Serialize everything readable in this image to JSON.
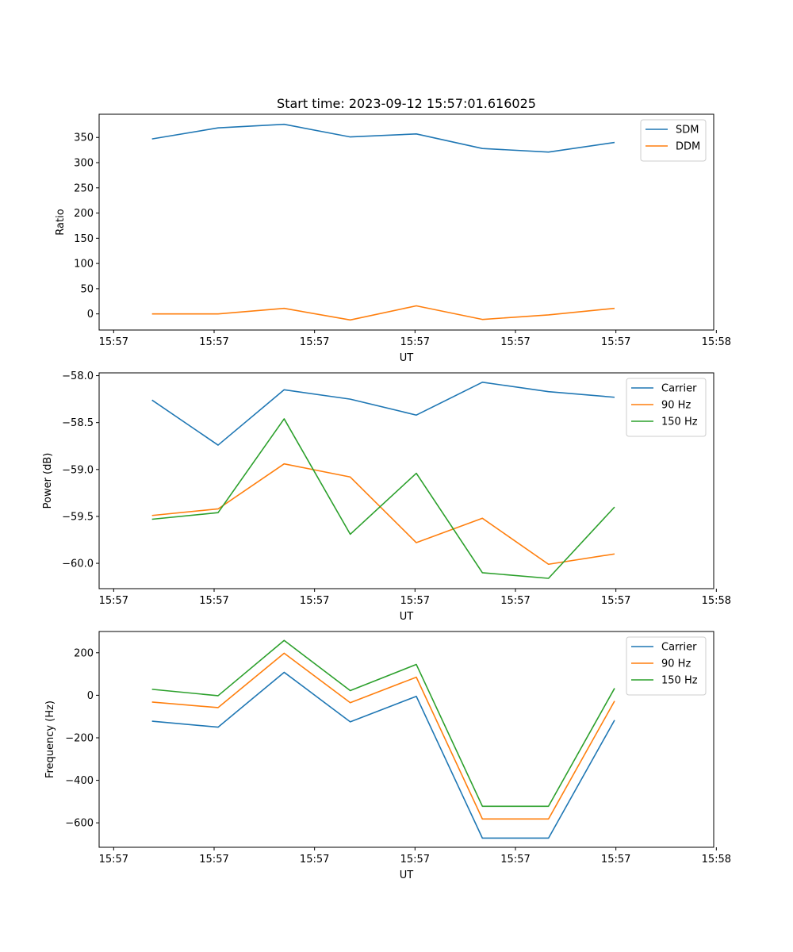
{
  "chart_data": [
    {
      "type": "line",
      "title": "Start time: 2023-09-12 15:57:01.616025",
      "xlabel": "UT",
      "ylabel": "Ratio",
      "x": [
        1,
        2,
        3,
        4,
        5,
        6,
        7,
        8
      ],
      "xlim": [
        0.2,
        9.5
      ],
      "x_ticks": [
        0.42,
        1.94,
        3.46,
        4.98,
        6.5,
        8.02,
        9.54
      ],
      "x_tick_labels": [
        "15:57",
        "15:57",
        "15:57",
        "15:57",
        "15:57",
        "15:57",
        "15:58"
      ],
      "ylim": [
        -32,
        396
      ],
      "y_ticks": [
        0,
        50,
        100,
        150,
        200,
        250,
        300,
        350
      ],
      "y_tick_labels": [
        "0",
        "50",
        "100",
        "150",
        "200",
        "250",
        "300",
        "350"
      ],
      "legend_position": "top-right",
      "series": [
        {
          "name": "SDM",
          "color": "#1f77b4",
          "values": [
            347,
            369,
            376,
            351,
            357,
            328,
            321,
            340
          ]
        },
        {
          "name": "DDM",
          "color": "#ff7f0e",
          "values": [
            0,
            0,
            11,
            -12,
            16,
            -11,
            -2,
            11
          ]
        }
      ]
    },
    {
      "type": "line",
      "title": "",
      "xlabel": "UT",
      "ylabel": "Power (dB)",
      "x": [
        1,
        2,
        3,
        4,
        5,
        6,
        7,
        8
      ],
      "xlim": [
        0.2,
        9.5
      ],
      "x_ticks": [
        0.42,
        1.94,
        3.46,
        4.98,
        6.5,
        8.02,
        9.54
      ],
      "x_tick_labels": [
        "15:57",
        "15:57",
        "15:57",
        "15:57",
        "15:57",
        "15:57",
        "15:58"
      ],
      "ylim": [
        -60.27,
        -57.97
      ],
      "y_ticks": [
        -60.0,
        -59.5,
        -59.0,
        -58.5,
        -58.0
      ],
      "y_tick_labels": [
        "−60.0",
        "−59.5",
        "−59.0",
        "−58.5",
        "−58.0"
      ],
      "legend_position": "top-right",
      "series": [
        {
          "name": "Carrier",
          "color": "#1f77b4",
          "values": [
            -58.26,
            -58.74,
            -58.15,
            -58.25,
            -58.42,
            -58.07,
            -58.17,
            -58.23
          ]
        },
        {
          "name": "90 Hz",
          "color": "#ff7f0e",
          "values": [
            -59.49,
            -59.42,
            -58.94,
            -59.08,
            -59.78,
            -59.52,
            -60.01,
            -59.9
          ]
        },
        {
          "name": "150 Hz",
          "color": "#2ca02c",
          "values": [
            -59.53,
            -59.46,
            -58.46,
            -59.69,
            -59.04,
            -60.1,
            -60.16,
            -59.4
          ]
        }
      ]
    },
    {
      "type": "line",
      "title": "",
      "xlabel": "UT",
      "ylabel": "Frequency (Hz)",
      "x": [
        1,
        2,
        3,
        4,
        5,
        6,
        7,
        8
      ],
      "xlim": [
        0.2,
        9.5
      ],
      "x_ticks": [
        0.42,
        1.94,
        3.46,
        4.98,
        6.5,
        8.02,
        9.54
      ],
      "x_tick_labels": [
        "15:57",
        "15:57",
        "15:57",
        "15:57",
        "15:57",
        "15:57",
        "15:58"
      ],
      "ylim": [
        -715,
        300
      ],
      "y_ticks": [
        -600,
        -400,
        -200,
        0,
        200
      ],
      "y_tick_labels": [
        "−600",
        "−400",
        "−200",
        "0",
        "200"
      ],
      "legend_position": "top-right",
      "series": [
        {
          "name": "Carrier",
          "color": "#1f77b4",
          "values": [
            -122,
            -150,
            108,
            -125,
            -5,
            -672,
            -672,
            -117
          ]
        },
        {
          "name": "90 Hz",
          "color": "#ff7f0e",
          "values": [
            -32,
            -58,
            198,
            -35,
            85,
            -582,
            -582,
            -27
          ]
        },
        {
          "name": "150 Hz",
          "color": "#2ca02c",
          "values": [
            28,
            -2,
            258,
            22,
            145,
            -522,
            -522,
            33
          ]
        }
      ]
    }
  ]
}
